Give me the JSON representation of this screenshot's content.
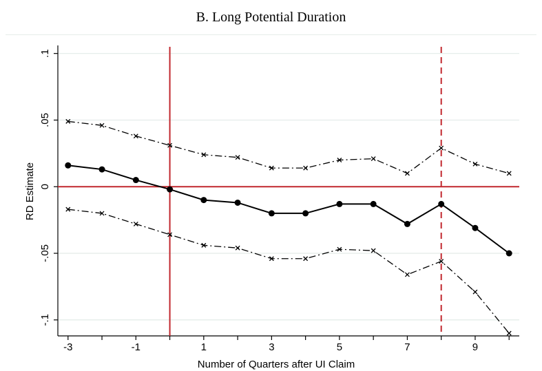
{
  "header": {
    "title": "B. Long Potential Duration"
  },
  "chart_data": {
    "type": "line",
    "title": "B. Long Potential Duration",
    "xlabel": "Number of Quarters after UI Claim",
    "ylabel": "RD Estimate",
    "xlim": [
      -3.3,
      10.3
    ],
    "ylim": [
      -0.112,
      0.105
    ],
    "x_ticks": [
      -3,
      -1,
      1,
      3,
      5,
      7,
      9
    ],
    "x_tick_labels": [
      "-3",
      "-1",
      "1",
      "3",
      "5",
      "7",
      "9"
    ],
    "y_ticks": [
      0.1,
      0.05,
      0,
      -0.05,
      -0.1
    ],
    "y_tick_labels": [
      ".1",
      ".05",
      "0",
      "-.05",
      "-.1"
    ],
    "grid": "horizontal",
    "x": [
      -3,
      -2,
      -1,
      0,
      1,
      2,
      3,
      4,
      5,
      6,
      7,
      8,
      9,
      10
    ],
    "series": [
      {
        "role": "upper-ci",
        "style": "dash-dot",
        "marker": "x",
        "values": [
          0.049,
          0.046,
          0.038,
          0.031,
          0.024,
          0.022,
          0.014,
          0.014,
          0.02,
          0.021,
          0.01,
          0.029,
          0.017,
          0.01
        ]
      },
      {
        "role": "estimate",
        "style": "solid",
        "marker": "circle",
        "values": [
          0.016,
          0.013,
          0.005,
          -0.002,
          -0.01,
          -0.012,
          -0.02,
          -0.02,
          -0.013,
          -0.013,
          -0.028,
          -0.013,
          -0.031,
          -0.05
        ]
      },
      {
        "role": "lower-ci",
        "style": "dash-dot",
        "marker": "x",
        "values": [
          -0.017,
          -0.02,
          -0.028,
          -0.036,
          -0.044,
          -0.046,
          -0.054,
          -0.054,
          -0.047,
          -0.048,
          -0.066,
          -0.056,
          -0.079,
          -0.11
        ]
      }
    ],
    "reference_lines": {
      "horizontal": [
        0
      ],
      "vertical_solid": [
        0
      ],
      "vertical_dashed": [
        8
      ],
      "color": "#c1272d"
    },
    "colors": {
      "lines": "#000000",
      "reference": "#c1272d",
      "grid": "#e3ebe8"
    }
  }
}
